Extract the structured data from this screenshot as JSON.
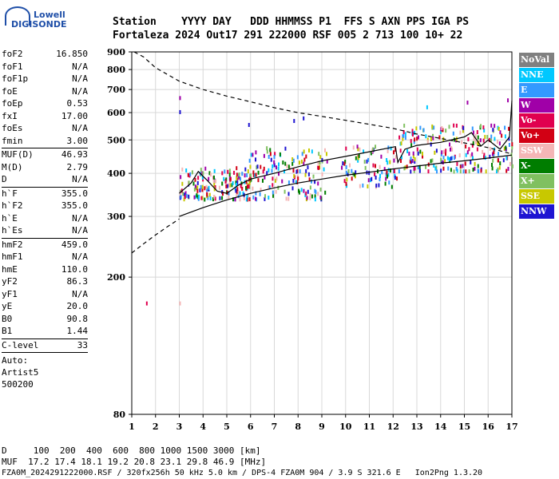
{
  "logo": {
    "brand_top": "Lowell",
    "brand_bottom": "DIGISONDE"
  },
  "header": {
    "labels_line": "Station    YYYY DAY   DDD HHMMSS P1  FFS S AXN PPS IGA PS",
    "values_line": "Fortaleza 2024 Out17 291 222000 RSF 005 2 713 100 10+ 22"
  },
  "sidebar": {
    "group1": [
      {
        "label": "foF2",
        "value": "16.850"
      },
      {
        "label": "foF1",
        "value": "N/A"
      },
      {
        "label": "foF1p",
        "value": "N/A"
      },
      {
        "label": "foE",
        "value": "N/A"
      },
      {
        "label": "foEp",
        "value": "0.53"
      },
      {
        "label": "fxI",
        "value": "17.00"
      },
      {
        "label": "foEs",
        "value": "N/A"
      },
      {
        "label": "fmin",
        "value": "3.00"
      }
    ],
    "group2": [
      {
        "label": "MUF(D)",
        "value": "46.93"
      },
      {
        "label": "M(D)",
        "value": "2.79"
      },
      {
        "label": "D",
        "value": "N/A"
      }
    ],
    "group3": [
      {
        "label": "h`F",
        "value": "355.0"
      },
      {
        "label": "h`F2",
        "value": "355.0"
      },
      {
        "label": "h`E",
        "value": "N/A"
      },
      {
        "label": "h`Es",
        "value": "N/A"
      }
    ],
    "group4": [
      {
        "label": "hmF2",
        "value": "459.0"
      },
      {
        "label": "hmF1",
        "value": "N/A"
      },
      {
        "label": "hmE",
        "value": "110.0"
      },
      {
        "label": "yF2",
        "value": "86.3"
      },
      {
        "label": "yF1",
        "value": "N/A"
      },
      {
        "label": "yE",
        "value": "20.0"
      },
      {
        "label": "B0",
        "value": "90.8"
      },
      {
        "label": "B1",
        "value": "1.44"
      }
    ],
    "clevel": {
      "label": "C-level",
      "value": "33"
    },
    "auto": [
      "Auto:",
      "Artist5",
      "500200"
    ]
  },
  "legend": [
    {
      "label": "NoVal",
      "color": "#808080"
    },
    {
      "label": "NNE",
      "color": "#00c8ff"
    },
    {
      "label": "E",
      "color": "#3399ff"
    },
    {
      "label": "W",
      "color": "#a000a8"
    },
    {
      "label": "Vo-",
      "color": "#e0004f"
    },
    {
      "label": "Vo+",
      "color": "#d20014"
    },
    {
      "label": "SSW",
      "color": "#f4b6b6"
    },
    {
      "label": "X-",
      "color": "#007d00"
    },
    {
      "label": "X+",
      "color": "#80c060"
    },
    {
      "label": "SSE",
      "color": "#c8c800"
    },
    {
      "label": "NNW",
      "color": "#1e14d2"
    }
  ],
  "footer": {
    "line1": "D     100  200  400  600  800 1000 1500 3000 [km]",
    "line2": "MUF  17.2 17.4 18.1 19.2 20.8 23.1 29.8 46.9 [MHz]",
    "line3": "FZA0M_2024291222000.RSF / 320fx256h 50 kHz 5.0 km / DPS-4 FZA0M 904 / 3.9 S 321.6 E   Ion2Png 1.3.20"
  },
  "chart_data": {
    "type": "scatter",
    "x_ticks": [
      1,
      2,
      3,
      4,
      5,
      6,
      7,
      8,
      9,
      10,
      11,
      12,
      13,
      14,
      15,
      16,
      17
    ],
    "y_ticks": [
      80,
      200,
      300,
      400,
      500,
      600,
      700,
      800,
      900
    ],
    "xlim": [
      1,
      17
    ],
    "y_scale": "log",
    "ylim": [
      80,
      900
    ],
    "grid": true,
    "profile_solid_upper": [
      [
        3,
        350
      ],
      [
        3.5,
        375
      ],
      [
        3.8,
        405
      ],
      [
        4.2,
        380
      ],
      [
        4.6,
        355
      ],
      [
        5.0,
        350
      ],
      [
        5.5,
        370
      ],
      [
        6,
        385
      ],
      [
        7,
        400
      ],
      [
        8,
        418
      ],
      [
        9,
        435
      ],
      [
        10,
        448
      ],
      [
        11,
        462
      ],
      [
        12.1,
        478
      ],
      [
        12.2,
        430
      ],
      [
        12.5,
        470
      ],
      [
        13,
        482
      ],
      [
        14,
        492
      ],
      [
        15,
        510
      ],
      [
        15.3,
        525
      ],
      [
        15.7,
        480
      ],
      [
        16,
        500
      ],
      [
        16.5,
        470
      ],
      [
        16.9,
        510
      ],
      [
        17,
        650
      ]
    ],
    "profile_solid_lower": [
      [
        3,
        300
      ],
      [
        4,
        318
      ],
      [
        5,
        335
      ],
      [
        6,
        350
      ],
      [
        7,
        363
      ],
      [
        8,
        375
      ],
      [
        9,
        385
      ],
      [
        10,
        395
      ],
      [
        11,
        403
      ],
      [
        12,
        412
      ],
      [
        13,
        420
      ],
      [
        14,
        428
      ],
      [
        15,
        435
      ],
      [
        16,
        443
      ],
      [
        17,
        452
      ]
    ],
    "profile_dashed_upper": [
      [
        1.1,
        900
      ],
      [
        1.5,
        870
      ],
      [
        2,
        810
      ],
      [
        3,
        740
      ],
      [
        4,
        700
      ],
      [
        5,
        670
      ],
      [
        6,
        645
      ],
      [
        7,
        620
      ],
      [
        8,
        600
      ],
      [
        9,
        585
      ],
      [
        10,
        570
      ],
      [
        11,
        555
      ],
      [
        12,
        540
      ],
      [
        13,
        520
      ],
      [
        14,
        505
      ],
      [
        15,
        490
      ],
      [
        16,
        475
      ],
      [
        17,
        455
      ]
    ],
    "profile_dashed_lower": [
      [
        1,
        235
      ],
      [
        1.5,
        250
      ],
      [
        2,
        265
      ],
      [
        2.5,
        280
      ],
      [
        3,
        295
      ]
    ],
    "point_clusters": [
      {
        "x": [
          3.0,
          6.0
        ],
        "y": [
          340,
          420
        ],
        "count": 170
      },
      {
        "x": [
          5.8,
          9.2
        ],
        "y": [
          340,
          480
        ],
        "count": 150
      },
      {
        "x": [
          9.8,
          12.2
        ],
        "y": [
          370,
          490
        ],
        "count": 90
      },
      {
        "x": [
          12.2,
          17.0
        ],
        "y": [
          410,
          560
        ],
        "count": 230
      }
    ]
  }
}
